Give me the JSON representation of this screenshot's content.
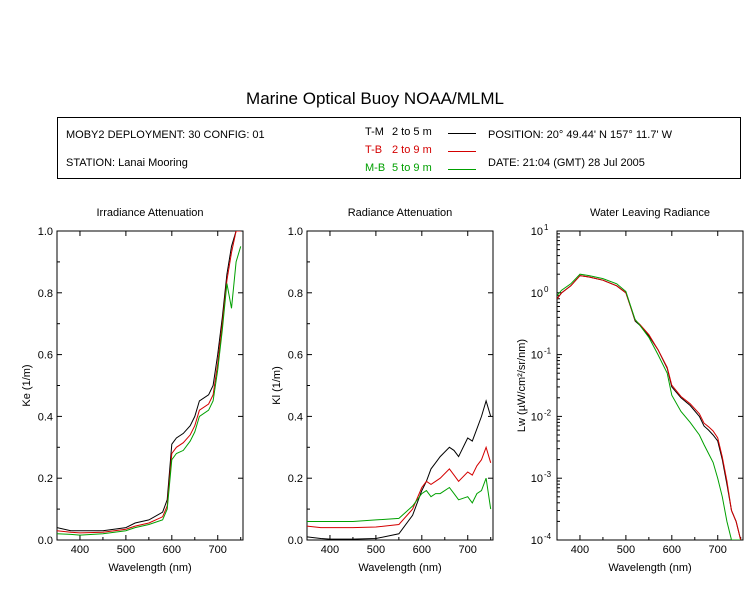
{
  "title": "Marine Optical Buoy NOAA/MLML",
  "info": {
    "deployment": "MOBY2 DEPLOYMENT: 30 CONFIG: 01",
    "station": "STATION: Lanai Mooring",
    "position": "POSITION: 20° 49.44' N   157° 11.7' W",
    "date": "DATE: 21:04 (GMT) 28 Jul 2005"
  },
  "legend": [
    {
      "name": "T-M",
      "range": "2 to 5  m",
      "color": "#000000"
    },
    {
      "name": "T-B",
      "range": "2 to 9  m",
      "color": "#d40000"
    },
    {
      "name": "M-B",
      "range": "5 to 9  m",
      "color": "#00a000"
    }
  ],
  "chart_data": [
    {
      "type": "line",
      "title": "Irradiance Attenuation",
      "xlabel": "Wavelength (nm)",
      "ylabel": "Ke  (1/m)",
      "xlim": [
        350,
        755
      ],
      "ylim": [
        0,
        1.0
      ],
      "xticks": [
        400,
        500,
        600,
        700
      ],
      "yticks": [
        0.0,
        0.2,
        0.4,
        0.6,
        0.8,
        1.0
      ],
      "ytick_labels": [
        "0.0",
        "0.2",
        "0.4",
        "0.6",
        "0.8",
        "1.0"
      ],
      "series": [
        {
          "name": "T-M",
          "x": [
            350,
            380,
            400,
            450,
            500,
            520,
            550,
            580,
            590,
            600,
            610,
            625,
            640,
            650,
            660,
            680,
            690,
            700,
            710,
            720,
            730,
            740,
            750
          ],
          "y": [
            0.04,
            0.03,
            0.03,
            0.03,
            0.04,
            0.055,
            0.065,
            0.09,
            0.13,
            0.31,
            0.33,
            0.345,
            0.37,
            0.4,
            0.45,
            0.47,
            0.5,
            0.6,
            0.72,
            0.86,
            0.95,
            1.0,
            1.0
          ]
        },
        {
          "name": "T-B",
          "x": [
            350,
            380,
            400,
            450,
            500,
            520,
            550,
            580,
            590,
            600,
            610,
            625,
            640,
            650,
            660,
            680,
            690,
            700,
            710,
            720,
            730,
            740,
            750
          ],
          "y": [
            0.03,
            0.025,
            0.023,
            0.025,
            0.035,
            0.045,
            0.055,
            0.075,
            0.11,
            0.28,
            0.3,
            0.315,
            0.34,
            0.37,
            0.42,
            0.44,
            0.47,
            0.57,
            0.7,
            0.84,
            0.93,
            1.0,
            1.0
          ]
        },
        {
          "name": "M-B",
          "x": [
            350,
            380,
            400,
            450,
            500,
            520,
            550,
            580,
            590,
            600,
            610,
            625,
            640,
            650,
            660,
            680,
            690,
            700,
            710,
            720,
            730,
            740,
            750
          ],
          "y": [
            0.02,
            0.018,
            0.016,
            0.02,
            0.03,
            0.04,
            0.05,
            0.065,
            0.1,
            0.26,
            0.28,
            0.29,
            0.32,
            0.35,
            0.4,
            0.42,
            0.45,
            0.55,
            0.68,
            0.83,
            0.75,
            0.9,
            0.95
          ]
        }
      ]
    },
    {
      "type": "line",
      "title": "Radiance Attenuation",
      "xlabel": "Wavelength (nm)",
      "ylabel": "Kl  (1/m)",
      "xlim": [
        350,
        755
      ],
      "ylim": [
        0,
        1.0
      ],
      "xticks": [
        400,
        500,
        600,
        700
      ],
      "yticks": [
        0.0,
        0.2,
        0.4,
        0.6,
        0.8,
        1.0
      ],
      "ytick_labels": [
        "0.0",
        "0.2",
        "0.4",
        "0.6",
        "0.8",
        "1.0"
      ],
      "series": [
        {
          "name": "T-M",
          "x": [
            350,
            380,
            400,
            450,
            500,
            550,
            580,
            600,
            610,
            620,
            630,
            640,
            660,
            670,
            680,
            700,
            710,
            720,
            730,
            740,
            750
          ],
          "y": [
            0.01,
            0.005,
            0.003,
            0.003,
            0.005,
            0.02,
            0.08,
            0.16,
            0.19,
            0.23,
            0.25,
            0.27,
            0.3,
            0.29,
            0.27,
            0.33,
            0.32,
            0.36,
            0.4,
            0.45,
            0.4
          ]
        },
        {
          "name": "T-B",
          "x": [
            350,
            380,
            400,
            450,
            500,
            550,
            580,
            600,
            610,
            620,
            630,
            640,
            660,
            670,
            680,
            700,
            710,
            720,
            730,
            740,
            750
          ],
          "y": [
            0.045,
            0.04,
            0.04,
            0.04,
            0.042,
            0.05,
            0.1,
            0.17,
            0.19,
            0.18,
            0.19,
            0.2,
            0.23,
            0.21,
            0.19,
            0.22,
            0.21,
            0.24,
            0.26,
            0.3,
            0.25
          ]
        },
        {
          "name": "M-B",
          "x": [
            350,
            380,
            400,
            450,
            500,
            550,
            580,
            600,
            610,
            620,
            630,
            640,
            660,
            670,
            680,
            700,
            710,
            720,
            730,
            740,
            750
          ],
          "y": [
            0.06,
            0.06,
            0.06,
            0.06,
            0.065,
            0.07,
            0.11,
            0.15,
            0.16,
            0.14,
            0.15,
            0.15,
            0.17,
            0.15,
            0.13,
            0.14,
            0.12,
            0.15,
            0.16,
            0.2,
            0.1
          ]
        }
      ]
    },
    {
      "type": "line",
      "title": "Water Leaving Radiance",
      "xlabel": "Wavelength (nm)",
      "ylabel": "Lw  (µW/cm²/sr/nm)",
      "xlim": [
        350,
        755
      ],
      "ylim": [
        0.0001,
        10
      ],
      "yscale": "log",
      "xticks": [
        400,
        500,
        600,
        700
      ],
      "yticks": [
        0.0001,
        0.001,
        0.01,
        0.1,
        1,
        10
      ],
      "ytick_labels": [
        [
          "10",
          "-4"
        ],
        [
          "10",
          "-3"
        ],
        [
          "10",
          "-2"
        ],
        [
          "10",
          "-1"
        ],
        [
          "10",
          "0"
        ],
        [
          "10",
          "1"
        ]
      ],
      "series": [
        {
          "name": "T-M",
          "x": [
            350,
            360,
            380,
            400,
            420,
            450,
            480,
            500,
            510,
            520,
            530,
            550,
            570,
            590,
            600,
            620,
            640,
            660,
            670,
            680,
            690,
            700,
            710,
            720,
            730,
            740,
            750
          ],
          "y": [
            0.8,
            1.0,
            1.3,
            1.9,
            1.8,
            1.6,
            1.3,
            1.0,
            0.6,
            0.35,
            0.3,
            0.2,
            0.12,
            0.06,
            0.03,
            0.02,
            0.015,
            0.01,
            0.007,
            0.006,
            0.005,
            0.004,
            0.002,
            0.0008,
            0.0003,
            0.0002,
            0.0001
          ]
        },
        {
          "name": "T-B",
          "x": [
            350,
            360,
            380,
            400,
            420,
            450,
            480,
            500,
            510,
            520,
            530,
            550,
            570,
            590,
            600,
            620,
            640,
            660,
            670,
            680,
            690,
            700,
            710,
            720,
            730,
            740,
            750
          ],
          "y": [
            0.8,
            1.0,
            1.3,
            1.9,
            1.8,
            1.6,
            1.3,
            1.0,
            0.6,
            0.36,
            0.31,
            0.21,
            0.12,
            0.062,
            0.032,
            0.021,
            0.016,
            0.011,
            0.0078,
            0.0068,
            0.0058,
            0.0045,
            0.0022,
            0.0009,
            0.0003,
            0.0002,
            0.0001
          ]
        },
        {
          "name": "M-B",
          "x": [
            350,
            360,
            380,
            400,
            420,
            450,
            480,
            500,
            510,
            520,
            530,
            550,
            570,
            590,
            600,
            620,
            640,
            660,
            670,
            680,
            690,
            700,
            710,
            720,
            730,
            740,
            750
          ],
          "y": [
            0.9,
            1.1,
            1.4,
            2.0,
            1.9,
            1.7,
            1.4,
            1.05,
            0.62,
            0.37,
            0.3,
            0.19,
            0.1,
            0.05,
            0.022,
            0.012,
            0.008,
            0.005,
            0.0035,
            0.0025,
            0.0018,
            0.001,
            0.0005,
            0.0002,
            0.0001,
            0.0001,
            0.0001
          ]
        }
      ]
    }
  ]
}
